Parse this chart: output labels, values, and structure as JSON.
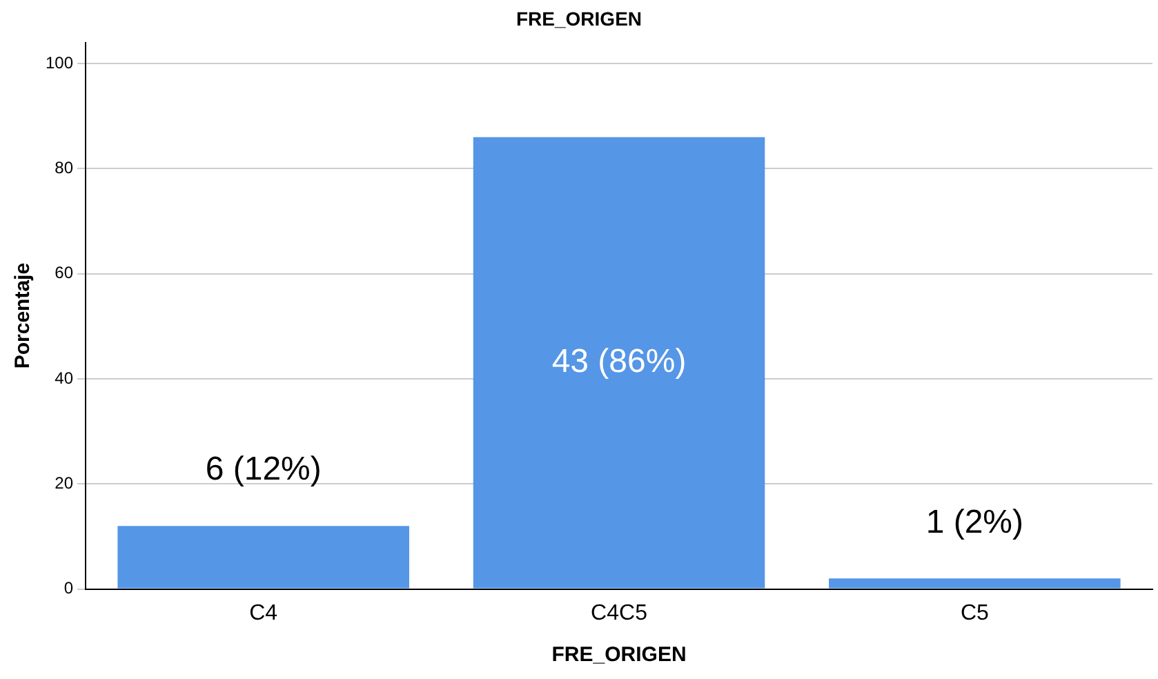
{
  "chart_data": {
    "type": "bar",
    "title": "FRE_ORIGEN",
    "xlabel": "FRE_ORIGEN",
    "ylabel": "Porcentaje",
    "categories": [
      "C4",
      "C4C5",
      "C5"
    ],
    "values": [
      12,
      86,
      2
    ],
    "value_labels": [
      "6 (12%)",
      "43 (86%)",
      "1 (2%)"
    ],
    "color": "#5596e6",
    "ylim": [
      0,
      104
    ],
    "yticks": [
      0,
      20,
      40,
      60,
      80,
      100
    ],
    "grid": "y",
    "legend": false
  }
}
